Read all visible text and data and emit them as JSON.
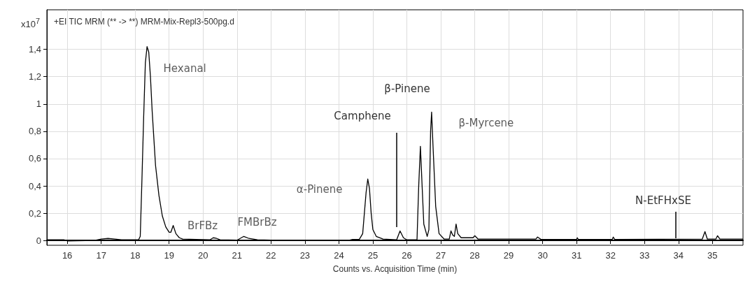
{
  "chart_data": {
    "type": "line",
    "title": "+EI TIC MRM (** -> **) MRM-Mix-Repl3-500pg.d",
    "xlabel": "Counts vs. Acquisition Time (min)",
    "ylabel": "x10$^{7}$",
    "x": [
      15.4,
      15.9,
      16.0,
      16.8,
      17.0,
      17.2,
      17.4,
      17.6,
      18.1,
      18.15,
      18.2,
      18.25,
      18.3,
      18.35,
      18.4,
      18.45,
      18.5,
      18.55,
      18.6,
      18.7,
      18.8,
      18.9,
      19.0,
      19.05,
      19.12,
      19.2,
      19.3,
      19.4,
      20.2,
      20.3,
      20.4,
      20.5,
      21.0,
      21.2,
      21.35,
      21.6,
      22.0,
      24.3,
      24.4,
      24.6,
      24.7,
      24.8,
      24.85,
      24.9,
      24.95,
      25.0,
      25.1,
      25.3,
      25.7,
      25.8,
      25.9,
      26.0,
      26.3,
      26.35,
      26.4,
      26.45,
      26.5,
      26.6,
      26.65,
      26.7,
      26.73,
      26.77,
      26.85,
      26.95,
      27.1,
      27.25,
      27.3,
      27.35,
      27.4,
      27.45,
      27.5,
      27.6,
      27.95,
      28.0,
      28.1,
      29.8,
      29.85,
      29.95,
      31.0,
      31.02,
      31.05,
      32.05,
      32.08,
      32.12,
      34.7,
      34.78,
      34.85,
      35.1,
      35.15,
      35.22,
      35.9
    ],
    "series": [
      {
        "color": "#000000",
        "values": [
          0.005,
          0.005,
          -0.003,
          0.0,
          0.01,
          0.015,
          0.01,
          0.005,
          0.005,
          0.03,
          0.45,
          0.9,
          1.3,
          1.42,
          1.38,
          1.2,
          0.95,
          0.75,
          0.55,
          0.33,
          0.18,
          0.1,
          0.06,
          0.06,
          0.11,
          0.05,
          0.02,
          0.01,
          0.005,
          0.02,
          0.015,
          0.005,
          0.002,
          0.03,
          0.015,
          0.005,
          0.002,
          0.002,
          0.008,
          0.008,
          0.05,
          0.35,
          0.45,
          0.38,
          0.2,
          0.08,
          0.03,
          0.01,
          0.005,
          0.07,
          0.02,
          0.005,
          0.005,
          0.4,
          0.69,
          0.4,
          0.12,
          0.03,
          0.08,
          0.8,
          0.94,
          0.7,
          0.25,
          0.05,
          0.01,
          0.01,
          0.07,
          0.04,
          0.03,
          0.12,
          0.05,
          0.02,
          0.02,
          0.035,
          0.01,
          0.01,
          0.025,
          0.008,
          0.008,
          0.02,
          0.008,
          0.008,
          0.025,
          0.008,
          0.01,
          0.065,
          0.01,
          0.01,
          0.035,
          0.01,
          0.01
        ]
      }
    ],
    "annotations": [
      {
        "text": "Hexanal",
        "x": 18.35,
        "y": 1.42
      },
      {
        "text": "BrFBz",
        "x": 19.12,
        "y": 0.11
      },
      {
        "text": "FMBrBz",
        "x": 21.2,
        "y": 0.03
      },
      {
        "text": "α-Pinene",
        "x": 24.85,
        "y": 0.45
      },
      "Camphene",
      "β-Pinene",
      {
        "text": "β-Myrcene",
        "x": 26.73,
        "y": 0.94
      },
      "N-EtFHxSE"
    ],
    "xlim": [
      15.4,
      35.9
    ],
    "xticks": [
      16,
      17,
      18,
      19,
      20,
      21,
      22,
      23,
      24,
      25,
      26,
      27,
      28,
      29,
      30,
      31,
      32,
      33,
      34,
      35
    ],
    "ylim": [
      -0.035,
      1.69
    ],
    "yticks": [
      0,
      {
        "value": 0.2,
        "label": "0,2"
      },
      {
        "value": 0.4,
        "label": "0,4"
      },
      {
        "value": 0.6,
        "label": "0,6"
      },
      {
        "value": 0.8,
        "label": "0,8"
      },
      1,
      {
        "value": 1.2,
        "label": "1,2"
      },
      {
        "value": 1.4,
        "label": "1,4"
      }
    ],
    "grid": true,
    "marker": "none",
    "line_style": "solid"
  }
}
